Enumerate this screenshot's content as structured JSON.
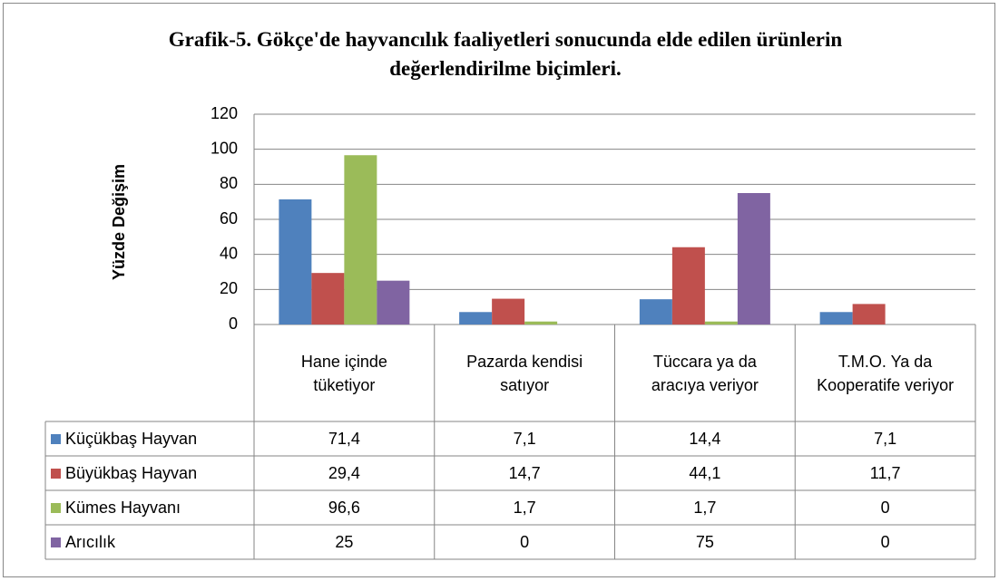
{
  "chart_data": {
    "type": "bar",
    "title": "Grafik-5. Gökçe'de hayvancılık faaliyetleri sonucunda elde edilen ürünlerin değerlendirilme biçimleri.",
    "y_label": "Yüzde Değişim",
    "categories": [
      "Hane içinde tüketiyor",
      "Pazarda kendisi satıyor",
      "Tüccara ya da aracıya veriyor",
      "T.M.O. Ya da Kooperatife veriyor"
    ],
    "series": [
      {
        "name": "Küçükbaş Hayvan",
        "color": "#4f81bd",
        "values": [
          71.4,
          7.1,
          14.4,
          7.1
        ],
        "value_labels": [
          "71,4",
          "7,1",
          "14,4",
          "7,1"
        ]
      },
      {
        "name": "Büyükbaş Hayvan",
        "color": "#c0504d",
        "values": [
          29.4,
          14.7,
          44.1,
          11.7
        ],
        "value_labels": [
          "29,4",
          "14,7",
          "44,1",
          "11,7"
        ]
      },
      {
        "name": "Kümes Hayvanı",
        "color": "#9bbb59",
        "values": [
          96.6,
          1.7,
          1.7,
          0
        ],
        "value_labels": [
          "96,6",
          "1,7",
          "1,7",
          "0"
        ]
      },
      {
        "name": "Arıcılık",
        "color": "#8064a2",
        "values": [
          25,
          0,
          75,
          0
        ],
        "value_labels": [
          "25",
          "0",
          "75",
          "0"
        ]
      }
    ],
    "ylim": [
      0,
      120
    ],
    "yticks": [
      0,
      20,
      40,
      60,
      80,
      100,
      120
    ],
    "grid": true,
    "data_table": true
  }
}
